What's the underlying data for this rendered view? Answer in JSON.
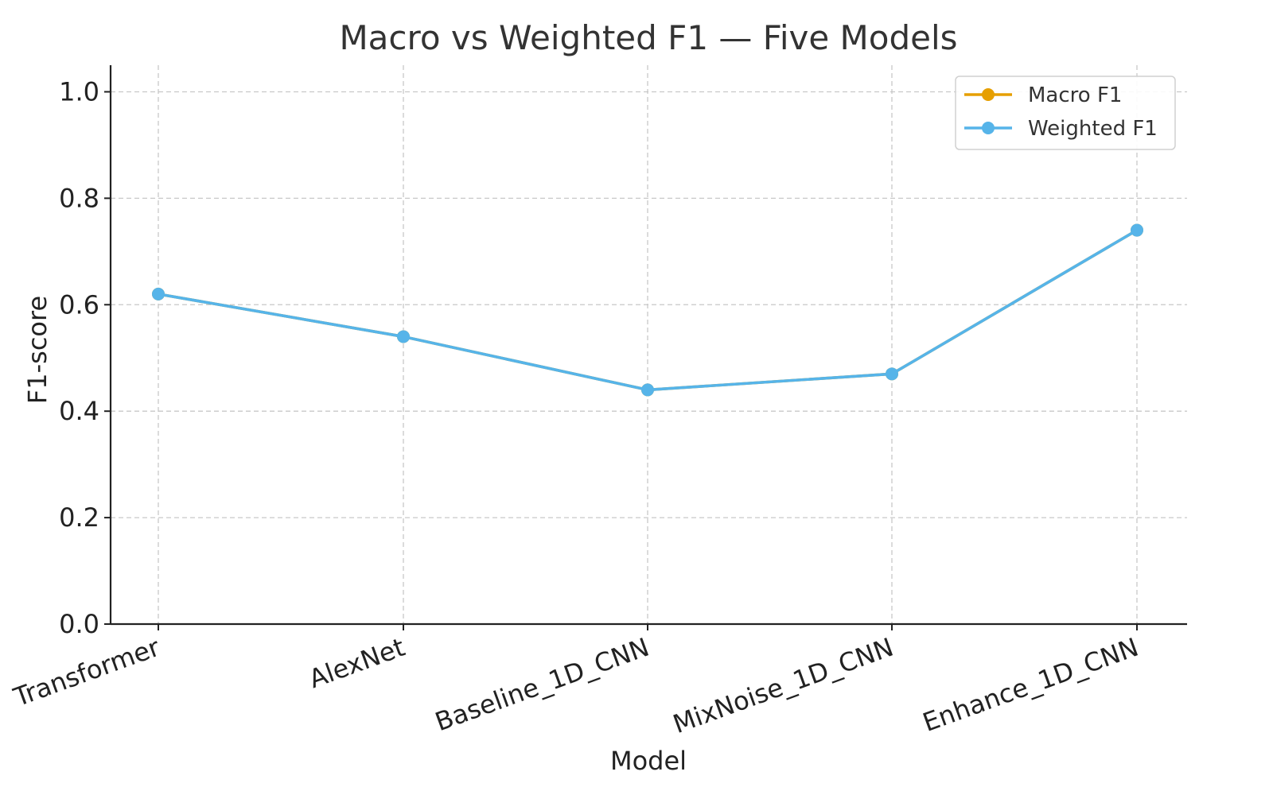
{
  "chart_data": {
    "type": "line",
    "title": "Macro vs Weighted F1 — Five Models",
    "xlabel": "Model",
    "ylabel": "F1-score",
    "categories": [
      "Transformer",
      "AlexNet",
      "Baseline_1D_CNN",
      "MixNoise_1D_CNN",
      "Enhance_1D_CNN"
    ],
    "ylim": [
      0,
      1.05
    ],
    "yticks": [
      "0.0",
      "0.2",
      "0.4",
      "0.6",
      "0.8",
      "1.0"
    ],
    "grid": true,
    "legend_position": "top-right",
    "series": [
      {
        "name": "Macro F1",
        "color": "#E69F00",
        "values": [
          0.62,
          0.54,
          0.44,
          0.47,
          0.74
        ]
      },
      {
        "name": "Weighted F1",
        "color": "#56B4E9",
        "values": [
          0.62,
          0.54,
          0.44,
          0.47,
          0.74
        ]
      }
    ]
  }
}
